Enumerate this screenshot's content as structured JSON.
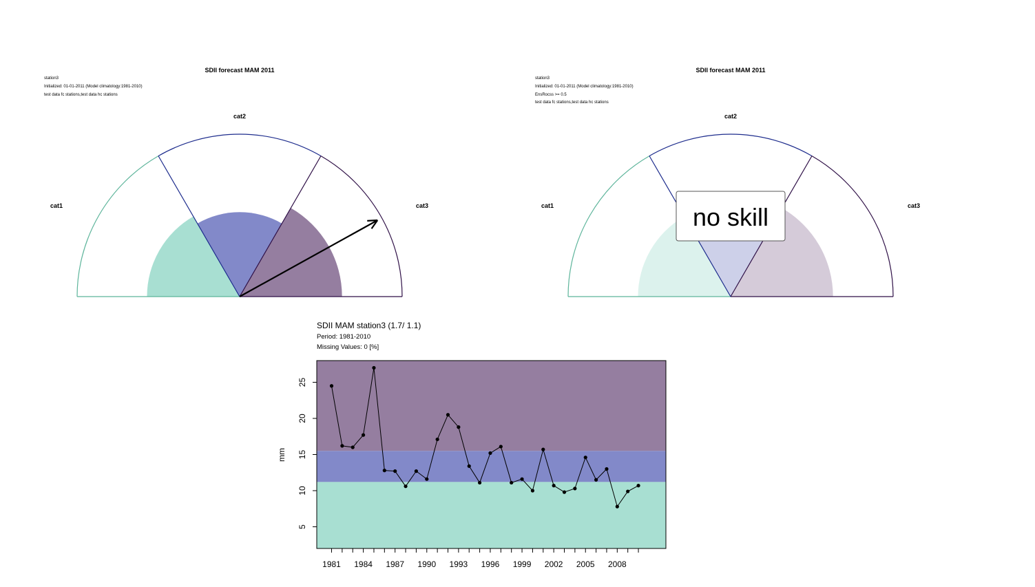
{
  "colors": {
    "cat1": "#a8dfd2",
    "cat2": "#8289c9",
    "cat3": "#957ea0",
    "cat1_line": "#5cb49a",
    "cat2_line": "#1c2b8c",
    "cat3_line": "#2e0f46",
    "arrow": "#000000"
  },
  "gauges": [
    {
      "title": "SDII forecast MAM 2011",
      "info_lines": [
        "station3",
        "Initialized: 01-01-2011 (Model climatology:1981-2010)",
        "test data fc stations,test data hc stations"
      ],
      "cat_labels": [
        "cat1",
        "cat2",
        "cat3"
      ],
      "probabilities": [
        0.333,
        0.333,
        0.333
      ],
      "fill_radius_fraction": [
        0.57,
        0.52,
        0.63
      ],
      "arrow_angle_deg": 29,
      "no_skill": false,
      "no_skill_label": ""
    },
    {
      "title": "SDII forecast MAM 2011",
      "info_lines": [
        "station3",
        "Initialized: 01-01-2011 (Model climatology:1981-2010)",
        "EnsRocss >= 0.5",
        "test data fc stations,test data hc stations"
      ],
      "cat_labels": [
        "cat1",
        "cat2",
        "cat3"
      ],
      "probabilities": [
        0.333,
        0.333,
        0.333
      ],
      "fill_radius_fraction": [
        0.57,
        0.52,
        0.63
      ],
      "arrow_angle_deg": null,
      "no_skill": true,
      "no_skill_label": "no skill"
    }
  ],
  "chart_data": {
    "type": "line",
    "title": "SDII MAM station3 (1.7/ 1.1)",
    "subtitle_lines": [
      "Period: 1981-2010",
      "Missing Values: 0 [%]"
    ],
    "xlabel": "",
    "ylabel": "mm",
    "xlim": [
      1979.6,
      2012.6
    ],
    "ylim": [
      2,
      28
    ],
    "x_ticks": [
      1981,
      1984,
      1987,
      1990,
      1993,
      1996,
      1999,
      2002,
      2005,
      2008
    ],
    "y_ticks": [
      5,
      10,
      15,
      20,
      25
    ],
    "terciles": {
      "lower": 11.2,
      "upper": 15.5
    },
    "x": [
      1981,
      1982,
      1983,
      1984,
      1985,
      1986,
      1987,
      1988,
      1989,
      1990,
      1991,
      1992,
      1993,
      1994,
      1995,
      1996,
      1997,
      1998,
      1999,
      2000,
      2001,
      2002,
      2003,
      2004,
      2005,
      2006,
      2007,
      2008,
      2009,
      2010
    ],
    "values": [
      24.5,
      16.2,
      16.0,
      17.7,
      27.0,
      12.8,
      12.7,
      10.6,
      12.7,
      11.6,
      17.1,
      20.5,
      18.8,
      13.4,
      11.1,
      15.2,
      16.1,
      11.1,
      11.6,
      10.0,
      15.7,
      10.7,
      9.8,
      10.3,
      14.6,
      11.5,
      13.0,
      7.8,
      9.9,
      10.7
    ]
  }
}
